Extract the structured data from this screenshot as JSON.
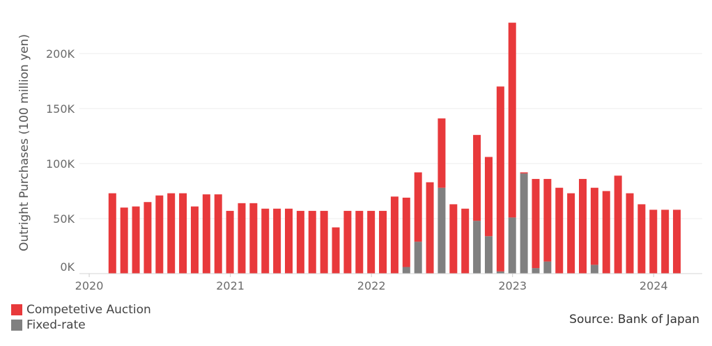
{
  "chart_data": {
    "type": "bar",
    "stacked": true,
    "ylabel": "Outright Purchases (100 million yen)",
    "ylim": [
      0,
      230000
    ],
    "yticks": [
      0,
      50000,
      100000,
      150000,
      200000
    ],
    "ytick_labels": [
      "0K",
      "50K",
      "100K",
      "150K",
      "200K"
    ],
    "xtick_labels": [
      "2020",
      "2021",
      "2022",
      "2023",
      "2024"
    ],
    "x": [
      "2020-03",
      "2020-04",
      "2020-05",
      "2020-06",
      "2020-07",
      "2020-08",
      "2020-09",
      "2020-10",
      "2020-11",
      "2020-12",
      "2021-01",
      "2021-02",
      "2021-03",
      "2021-04",
      "2021-05",
      "2021-06",
      "2021-07",
      "2021-08",
      "2021-09",
      "2021-10",
      "2021-11",
      "2021-12",
      "2022-01",
      "2022-02",
      "2022-03",
      "2022-04",
      "2022-05",
      "2022-06",
      "2022-07",
      "2022-08",
      "2022-09",
      "2022-10",
      "2022-11",
      "2022-12",
      "2023-01",
      "2023-02",
      "2023-03",
      "2023-04",
      "2023-05",
      "2023-06",
      "2023-07",
      "2023-08",
      "2023-09",
      "2023-10",
      "2023-11",
      "2023-12",
      "2024-01",
      "2024-02",
      "2024-03"
    ],
    "series": [
      {
        "name": "Fixed-rate",
        "color": "#808080",
        "values": [
          0,
          0,
          0,
          0,
          0,
          0,
          0,
          0,
          0,
          0,
          0,
          0,
          0,
          0,
          0,
          0,
          0,
          0,
          0,
          0,
          0,
          0,
          0,
          0,
          0,
          6000,
          29000,
          0,
          78000,
          0,
          0,
          48000,
          34000,
          2000,
          51000,
          91000,
          5000,
          11000,
          0,
          0,
          0,
          8000,
          0,
          0,
          0,
          0,
          0,
          0,
          0
        ]
      },
      {
        "name": "Competetive Auction",
        "color": "#e8393b",
        "values": [
          73000,
          60000,
          61000,
          65000,
          71000,
          73000,
          73000,
          61000,
          72000,
          72000,
          57000,
          64000,
          64000,
          59000,
          59000,
          59000,
          57000,
          57000,
          57000,
          42000,
          57000,
          57000,
          57000,
          57000,
          70000,
          63000,
          63000,
          83000,
          63000,
          63000,
          59000,
          78000,
          72000,
          168000,
          177000,
          1000,
          81000,
          75000,
          78000,
          73000,
          86000,
          70000,
          75000,
          89000,
          73000,
          63000,
          58000,
          58000,
          58000
        ]
      }
    ],
    "legend_position": "bottom-left",
    "grid": true
  },
  "legend": {
    "auction_label": "Competetive Auction",
    "auction_color": "#e8393b",
    "fixed_label": "Fixed-rate",
    "fixed_color": "#808080"
  },
  "source_text": "Source: Bank of Japan"
}
